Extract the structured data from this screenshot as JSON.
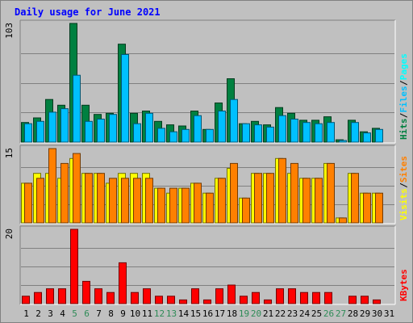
{
  "colors": {
    "background": "#c0c0c0",
    "title": "#0000ff",
    "hits": "#008040",
    "files": "#00c0ff",
    "pages": "#00ffff",
    "visits": "#ffff00",
    "sites": "#ff8000",
    "kbytes": "#ff0000",
    "weekend_day": "#2e8b57",
    "weekday": "#000000",
    "grid": "#808080"
  },
  "chart_data": {
    "type": "bar",
    "title": "Daily usage for June 2021",
    "x": {
      "days": [
        "1",
        "2",
        "3",
        "4",
        "5",
        "6",
        "7",
        "8",
        "9",
        "10",
        "11",
        "12",
        "13",
        "14",
        "15",
        "16",
        "17",
        "18",
        "19",
        "20",
        "21",
        "22",
        "23",
        "24",
        "25",
        "26",
        "27",
        "28",
        "29",
        "30",
        "31"
      ],
      "weekend_days": [
        "5",
        "6",
        "12",
        "13",
        "19",
        "20",
        "26",
        "27"
      ]
    },
    "panels": [
      {
        "id": "hits",
        "max_label": "103",
        "ylim": [
          0,
          103
        ],
        "side_labels": [
          {
            "text": "Hits",
            "color_key": "hits"
          },
          {
            "text": "Files",
            "color_key": "files"
          },
          {
            "text": "Pages",
            "color_key": "pages"
          }
        ],
        "series": [
          {
            "name": "Hits",
            "color_key": "hits",
            "values": [
              17,
              21,
              37,
              32,
              103,
              32,
              24,
              25,
              85,
              25,
              27,
              18,
              15,
              14,
              27,
              11,
              34,
              55,
              16,
              18,
              15,
              30,
              25,
              19,
              19,
              22,
              2,
              19,
              9,
              12,
              0
            ]
          },
          {
            "name": "Files",
            "color_key": "files",
            "values": [
              16,
              18,
              26,
              29,
              58,
              18,
              20,
              24,
              76,
              16,
              25,
              12,
              9,
              11,
              23,
              11,
              27,
              37,
              16,
              15,
              13,
              23,
              20,
              17,
              16,
              17,
              1,
              17,
              8,
              11,
              0
            ]
          }
        ]
      },
      {
        "id": "visits",
        "max_label": "15",
        "ylim": [
          0,
          15
        ],
        "side_labels": [
          {
            "text": "Visits",
            "color_key": "visits"
          },
          {
            "text": "Sites",
            "color_key": "sites"
          }
        ],
        "series": [
          {
            "name": "Visits",
            "color_key": "visits",
            "values": [
              8,
              10,
              10,
              9,
              13,
              10,
              10,
              8,
              10,
              10,
              10,
              7,
              6,
              7,
              8,
              6,
              9,
              11,
              5,
              10,
              10,
              13,
              10,
              9,
              9,
              12,
              1,
              10,
              6,
              6,
              0
            ]
          },
          {
            "name": "Sites",
            "color_key": "sites",
            "values": [
              8,
              9,
              15,
              12,
              14,
              10,
              10,
              9,
              9,
              9,
              9,
              7,
              7,
              7,
              8,
              6,
              9,
              12,
              5,
              10,
              10,
              13,
              12,
              9,
              9,
              12,
              1,
              10,
              6,
              6,
              0
            ]
          }
        ]
      },
      {
        "id": "kbytes",
        "max_label": "20",
        "ylim": [
          0,
          20
        ],
        "side_labels": [
          {
            "text": "KBytes",
            "color_key": "kbytes"
          }
        ],
        "series": [
          {
            "name": "KBytes",
            "color_key": "kbytes",
            "values": [
              2,
              3,
              4,
              4,
              20,
              6,
              4,
              3,
              11,
              3,
              4,
              2,
              2,
              1,
              4,
              1,
              4,
              5,
              2,
              3,
              1,
              4,
              4,
              3,
              3,
              3,
              0,
              2,
              2,
              1,
              0
            ]
          }
        ]
      }
    ]
  }
}
